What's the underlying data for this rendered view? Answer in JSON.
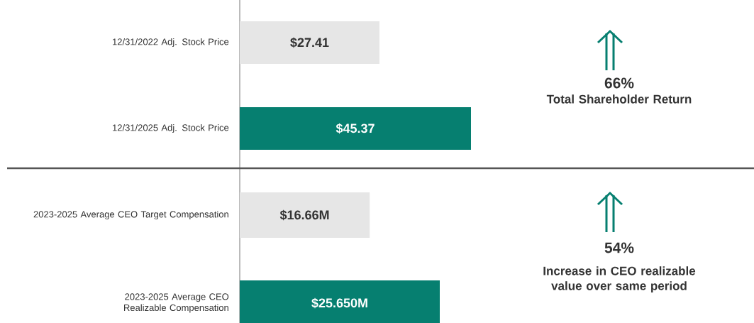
{
  "chart_data": [
    {
      "type": "bar",
      "orientation": "horizontal",
      "tick_labels": "y",
      "categories": [
        "12/31/2022 Adj. Stock Price",
        "12/31/2025 Adj. Stock Price"
      ],
      "values": [
        27.41,
        45.37
      ],
      "colors": [
        "#e6e6e6",
        "#067f70"
      ],
      "value_labels": [
        "$27.41",
        "$45.37"
      ],
      "annotations": [
        "66%",
        "Total Shareholder Return"
      ]
    },
    {
      "type": "bar",
      "orientation": "horizontal",
      "tick_labels": "y",
      "categories": [
        "2023-2025 Average CEO Target Compensation",
        "2023-2025 Average CEO Realizable Compensation"
      ],
      "values": [
        16.66,
        25.65
      ],
      "colors": [
        "#e6e6e6",
        "#067f70"
      ],
      "value_labels": [
        "$16.66M",
        "$25.650M"
      ],
      "annotations": [
        "54%",
        "Increase in CEO realizable value over same period"
      ]
    }
  ]
}
